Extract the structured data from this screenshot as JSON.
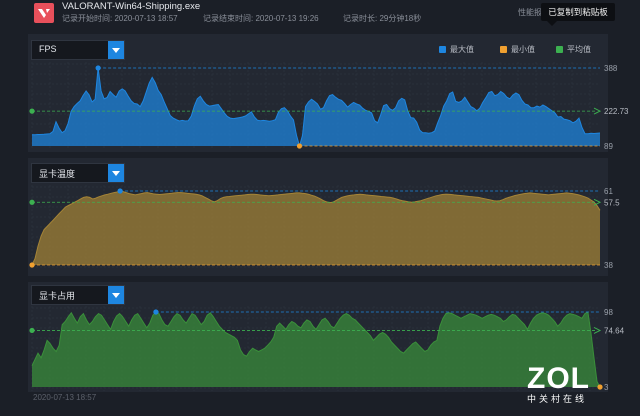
{
  "header": {
    "app_name": "VALORANT-Win64-Shipping.exe",
    "start_time": "记录开始时间: 2020-07-13 18:57",
    "end_time": "记录结束时间: 2020-07-13 19:26",
    "duration": "记录时长: 29分钟18秒",
    "perf_label": "性能报",
    "toast": "已复制到粘贴板"
  },
  "legend": {
    "max": "最大值",
    "min": "最小值",
    "avg": "平均值",
    "colors": {
      "max": "#1e86e0",
      "min": "#f0a030",
      "avg": "#3cb050"
    }
  },
  "footer": {
    "start_label": "2020-07-13 18:57"
  },
  "watermark": {
    "logo": "ZOL",
    "tagline": "中关村在线"
  },
  "chart_data": [
    {
      "type": "area",
      "title": "FPS",
      "color": "#1e86e0",
      "ylim": [
        89,
        388
      ],
      "max": 388,
      "avg": 222.73,
      "min": 89,
      "labels": {
        "max": "388",
        "avg": "222.73",
        "min": "89"
      },
      "values": [
        132,
        132,
        133,
        133,
        134,
        135,
        136,
        145,
        182,
        158,
        140,
        148,
        176,
        222,
        240,
        252,
        262,
        283,
        300,
        285,
        258,
        268,
        388,
        300,
        270,
        275,
        298,
        286,
        276,
        300,
        308,
        300,
        280,
        262,
        252,
        250,
        240,
        262,
        296,
        330,
        352,
        332,
        302,
        286,
        258,
        232,
        206,
        196,
        190,
        185,
        187,
        185,
        186,
        204,
        242,
        270,
        280,
        262,
        248,
        242,
        244,
        246,
        248,
        232,
        216,
        202,
        196,
        194,
        196,
        198,
        200,
        204,
        212,
        220,
        200,
        188,
        186,
        187,
        186,
        184,
        186,
        190,
        218,
        232,
        236,
        224,
        204,
        189,
        130,
        89,
        130,
        240,
        258,
        268,
        260,
        250,
        230,
        236,
        262,
        282,
        286,
        276,
        268,
        264,
        252,
        238,
        248,
        256,
        250,
        246,
        234,
        226,
        222,
        216,
        186,
        178,
        208,
        244,
        248,
        232,
        226,
        236,
        262,
        272,
        266,
        224,
        198,
        196,
        180,
        150,
        140,
        140,
        138,
        140,
        146,
        178,
        206,
        242,
        262,
        290,
        296,
        260,
        256,
        262,
        276,
        258,
        240,
        234,
        224,
        234,
        256,
        274,
        294,
        298,
        282,
        286,
        298,
        290,
        276,
        270,
        284,
        292,
        286,
        264,
        250,
        246,
        236,
        236,
        242,
        238,
        246,
        240,
        232,
        224,
        216,
        200,
        202,
        192,
        190,
        186,
        178,
        184,
        196,
        160,
        136,
        136,
        138,
        137,
        138,
        139
      ]
    },
    {
      "type": "area",
      "title": "显卡温度",
      "color": "#a58436",
      "ylim": [
        38,
        61
      ],
      "max": 61,
      "avg": 57.5,
      "min": 38,
      "labels": {
        "max": "61",
        "avg": "57.5",
        "min": "38"
      },
      "values": [
        38,
        40,
        44,
        47,
        49,
        50,
        51,
        52,
        53,
        54,
        55,
        56,
        56.5,
        57,
        57.5,
        58,
        58.5,
        59,
        59.2,
        59,
        58.5,
        58.8,
        59.2,
        59.5,
        59.8,
        60,
        60.3,
        60.5,
        60.7,
        61,
        60.8,
        60.5,
        60.2,
        60,
        59.8,
        60,
        60.2,
        60.4,
        60.5,
        60.3,
        60.1,
        60,
        59.9,
        60,
        60.1,
        60.2,
        60.3,
        60.4,
        60.5,
        60.5,
        60.4,
        60.3,
        60.2,
        60.1,
        60,
        59.8,
        59.5,
        59,
        58.5,
        58,
        57.6,
        58,
        58.6,
        59,
        59.2,
        59.3,
        59.4,
        59.5,
        59.6,
        59.7,
        59.8,
        59.9,
        60,
        60,
        59.9,
        59.8,
        59.7,
        59.6,
        59.5,
        59.6,
        59.7,
        59.8,
        59.9,
        60,
        60.1,
        60.2,
        60.3,
        60.4,
        60.4,
        60.3,
        60.2,
        60,
        59.7,
        59.4,
        59,
        58.5,
        58,
        57.6,
        57.4,
        57.5,
        58,
        58.5,
        59,
        59.3,
        59.5,
        59.7,
        59.8,
        59.9,
        60,
        59.9,
        59.8,
        59.7,
        59.6,
        59.5,
        59.4,
        59.3,
        59.2,
        59.1,
        59,
        58.8,
        58.5,
        58.2,
        58,
        57.8,
        57.6,
        57.5,
        57.6,
        57.8,
        58,
        58.3,
        58.6,
        58.9,
        59.2,
        59.5,
        59.7,
        59.9,
        60,
        60,
        59.9,
        59.8,
        59.7,
        59.6,
        59.5,
        59.4,
        59.3,
        59.2,
        59.1,
        59,
        58.8,
        58.6,
        58.4,
        58.2,
        58,
        57.9,
        58,
        58.3,
        58.7,
        59,
        59.3,
        59.6,
        59.8,
        60,
        60.2,
        60.3,
        60.4,
        60.3,
        60.2,
        60.1,
        60,
        59.9,
        59.8,
        59.9,
        60,
        60.1,
        60.2,
        60.3,
        60.4,
        60.3,
        60.2,
        60,
        59.8,
        59.5,
        59.2,
        58.8,
        58.2,
        57.6,
        56.5,
        55
      ]
    },
    {
      "type": "area",
      "title": "显卡占用",
      "color": "#3a8f3a",
      "ylim": [
        3,
        98
      ],
      "max": 98,
      "avg": 74.64,
      "min": 3,
      "labels": {
        "max": "98",
        "avg": "74.64",
        "min": "3"
      },
      "values": [
        30,
        38,
        46,
        40,
        50,
        62,
        58,
        52,
        48,
        56,
        82,
        86,
        92,
        97,
        90,
        84,
        92,
        96,
        88,
        82,
        86,
        92,
        96,
        94,
        88,
        82,
        76,
        86,
        93,
        96,
        92,
        86,
        80,
        88,
        94,
        96,
        90,
        84,
        78,
        84,
        94,
        98,
        96,
        88,
        82,
        80,
        86,
        92,
        96,
        94,
        88,
        84,
        90,
        96,
        94,
        88,
        82,
        86,
        94,
        97,
        92,
        86,
        80,
        76,
        72,
        70,
        68,
        66,
        62,
        50,
        44,
        42,
        48,
        52,
        50,
        48,
        50,
        52,
        56,
        60,
        66,
        80,
        84,
        80,
        76,
        82,
        86,
        84,
        80,
        78,
        84,
        88,
        86,
        80,
        76,
        82,
        88,
        90,
        86,
        80,
        78,
        84,
        90,
        94,
        96,
        94,
        90,
        88,
        84,
        80,
        76,
        72,
        68,
        62,
        66,
        70,
        72,
        70,
        66,
        60,
        56,
        52,
        48,
        46,
        50,
        54,
        58,
        60,
        56,
        52,
        48,
        50,
        56,
        60,
        62,
        80,
        90,
        96,
        97,
        96,
        94,
        92,
        90,
        92,
        94,
        96,
        95,
        94,
        92,
        90,
        92,
        94,
        95,
        94,
        92,
        90,
        86,
        88,
        92,
        95,
        94,
        90,
        86,
        82,
        76,
        84,
        90,
        94,
        96,
        97,
        96,
        94,
        90,
        86,
        80,
        84,
        90,
        94,
        96,
        95,
        94,
        92,
        90,
        96,
        98,
        72,
        40,
        10,
        3
      ]
    }
  ]
}
